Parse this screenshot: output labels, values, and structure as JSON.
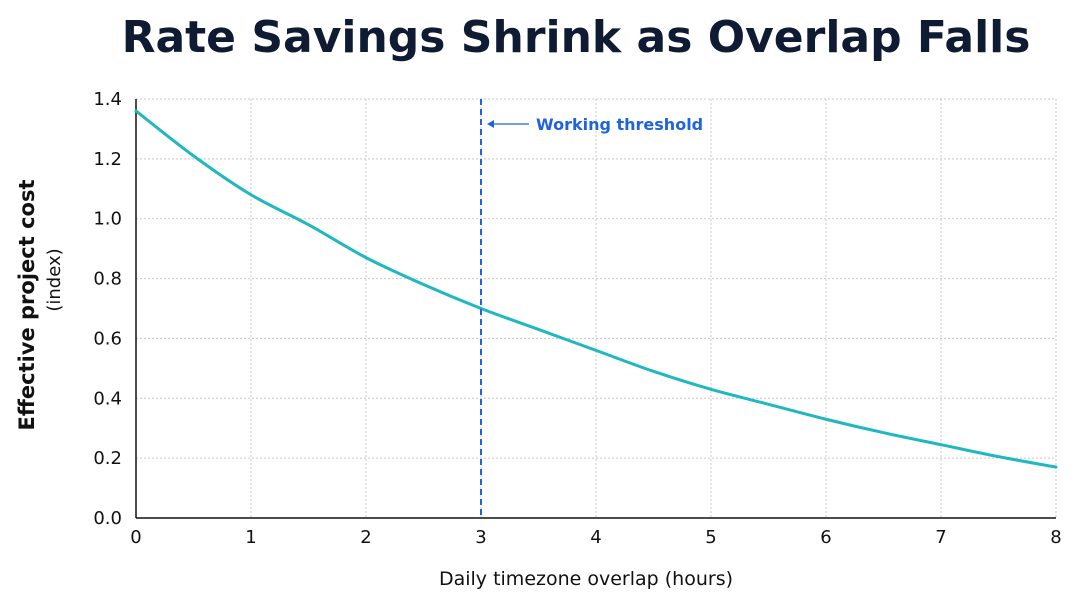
{
  "chart_data": {
    "type": "line",
    "title": "Rate Savings Shrink as Overlap Falls",
    "xlabel": "Daily timezone overlap (hours)",
    "ylabel": "Effective project cost",
    "ylabel_sub": "(index)",
    "xlim": [
      0,
      8
    ],
    "ylim": [
      0,
      1.4
    ],
    "x_ticks": [
      "0",
      "1",
      "2",
      "3",
      "4",
      "5",
      "6",
      "7",
      "8"
    ],
    "y_ticks": [
      "0.0",
      "0.2",
      "0.4",
      "0.6",
      "0.8",
      "1.0",
      "1.2",
      "1.4"
    ],
    "x_tick_values": [
      0,
      1,
      2,
      3,
      4,
      5,
      6,
      7,
      8
    ],
    "y_tick_values": [
      0,
      0.2,
      0.4,
      0.6,
      0.8,
      1.0,
      1.2,
      1.4
    ],
    "grid": true,
    "series": [
      {
        "color": "#1fb8bf",
        "x": [
          0,
          0.5,
          1,
          1.5,
          2,
          2.5,
          3,
          3.5,
          4,
          4.5,
          5,
          5.5,
          6,
          6.5,
          7,
          7.5,
          8
        ],
        "y": [
          1.36,
          1.21,
          1.08,
          0.98,
          0.87,
          0.78,
          0.7,
          0.63,
          0.56,
          0.49,
          0.43,
          0.38,
          0.33,
          0.285,
          0.245,
          0.205,
          0.17
        ]
      }
    ],
    "annotations": [
      {
        "type": "vline",
        "x": 3,
        "color": "#1f63e0",
        "label": "Working threshold"
      }
    ]
  }
}
